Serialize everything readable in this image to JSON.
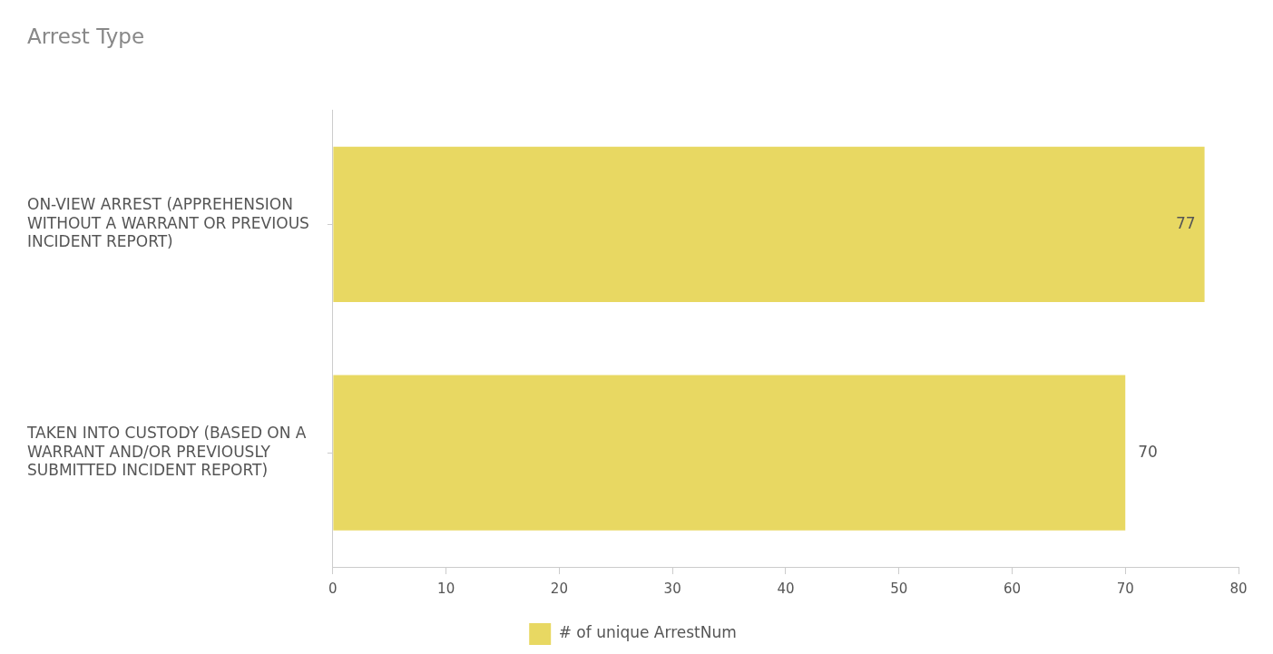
{
  "chart_data": {
    "type": "bar",
    "orientation": "horizontal",
    "title": "Arrest Type",
    "categories": [
      "ON-VIEW ARREST (APPREHENSION WITHOUT A WARRANT OR PREVIOUS INCIDENT REPORT)",
      "TAKEN INTO CUSTODY (BASED ON A WARRANT AND/OR PREVIOUSLY SUBMITTED INCIDENT REPORT)"
    ],
    "series": [
      {
        "name": "# of unique ArrestNum",
        "color": "#e8d862",
        "values": [
          77,
          70
        ]
      }
    ],
    "xlim": [
      0,
      80
    ],
    "xticks": [
      0,
      10,
      20,
      30,
      40,
      50,
      60,
      70,
      80
    ],
    "grid": false,
    "legend": "bottom",
    "data_labels": true
  }
}
